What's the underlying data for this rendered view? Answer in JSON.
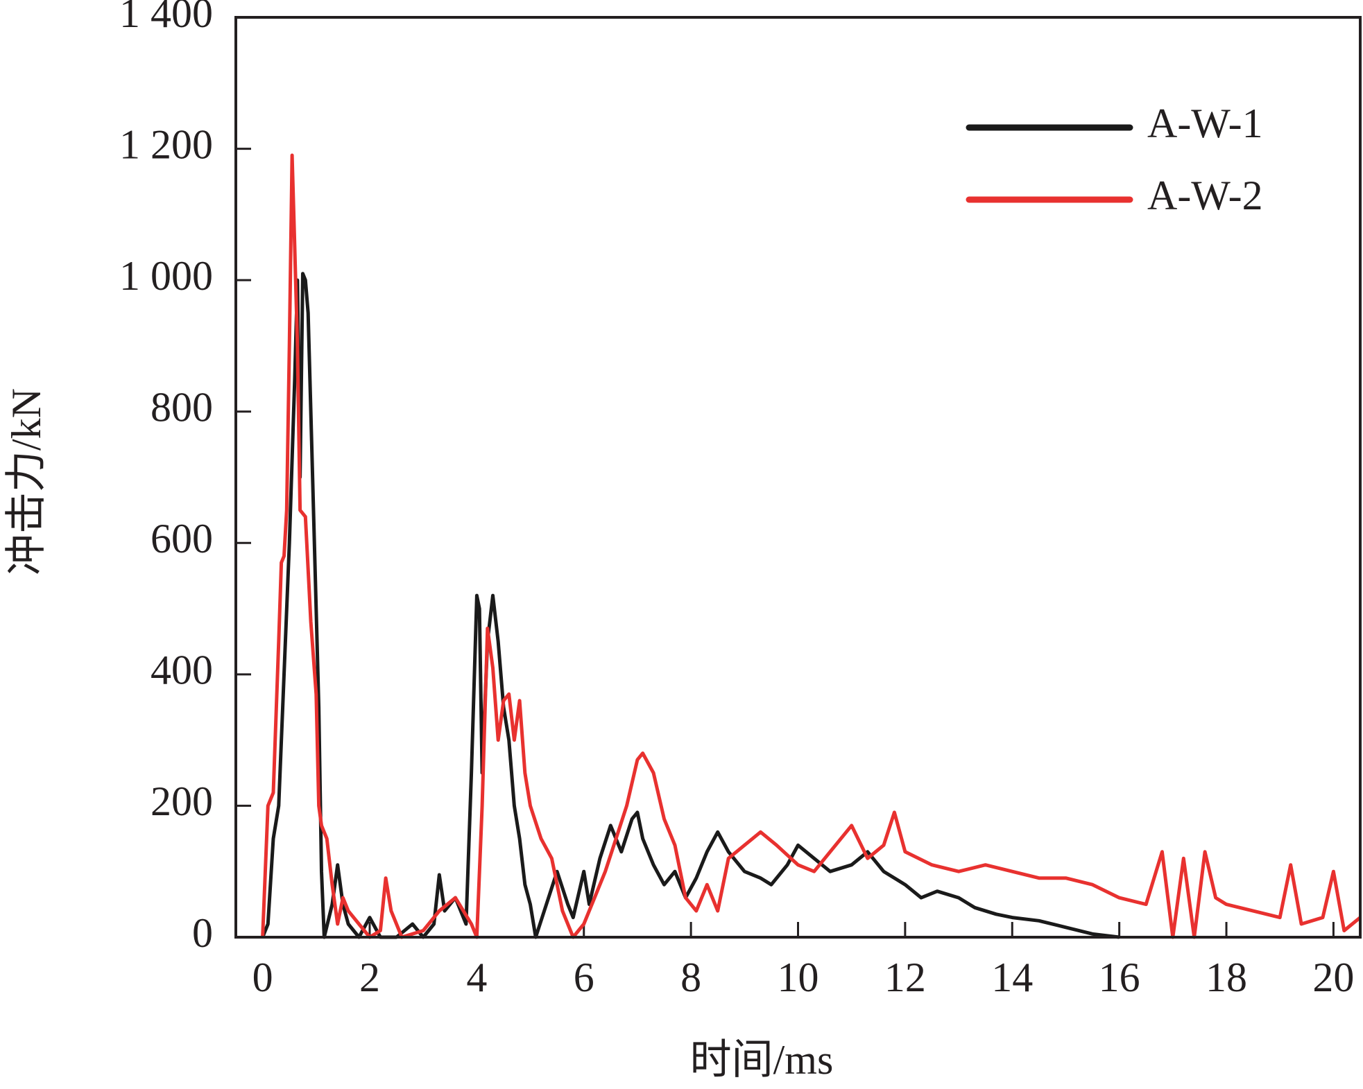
{
  "chart_data": {
    "type": "line",
    "xlabel": "时间/ms",
    "ylabel": "冲击力/kN",
    "xlim": [
      -0.5,
      20.5
    ],
    "xticks": [
      0,
      2,
      4,
      6,
      8,
      10,
      12,
      14,
      16,
      18,
      20
    ],
    "ylim": [
      0,
      1400
    ],
    "yticks": [
      0,
      200,
      400,
      600,
      800,
      {
        "value": 1000,
        "label": "1 000"
      },
      {
        "value": 1200,
        "label": "1 200"
      },
      {
        "value": 1400,
        "label": "1 400"
      }
    ],
    "legend": "upper right",
    "series": [
      {
        "name": "A-W-1",
        "color": "#1a1a1a",
        "x": [
          0,
          0.1,
          0.2,
          0.3,
          0.4,
          0.5,
          0.6,
          0.65,
          0.7,
          0.75,
          0.8,
          0.85,
          0.9,
          1.0,
          1.05,
          1.1,
          1.15,
          1.3,
          1.4,
          1.5,
          1.6,
          1.8,
          2.0,
          2.2,
          2.5,
          2.8,
          3.0,
          3.2,
          3.3,
          3.4,
          3.6,
          3.8,
          3.9,
          4.0,
          4.05,
          4.1,
          4.2,
          4.3,
          4.4,
          4.5,
          4.6,
          4.7,
          4.8,
          4.9,
          5.0,
          5.1,
          5.3,
          5.5,
          5.7,
          5.8,
          6.0,
          6.1,
          6.3,
          6.5,
          6.7,
          6.9,
          7.0,
          7.1,
          7.3,
          7.5,
          7.7,
          7.9,
          8.1,
          8.3,
          8.5,
          8.7,
          9.0,
          9.3,
          9.5,
          9.8,
          10.0,
          10.3,
          10.6,
          11.0,
          11.3,
          11.6,
          12.0,
          12.3,
          12.6,
          13.0,
          13.3,
          13.7,
          14.0,
          14.5,
          15.0,
          15.5,
          16.0
        ],
        "values": [
          0,
          20,
          150,
          200,
          400,
          600,
          850,
          1000,
          700,
          1010,
          1000,
          950,
          800,
          500,
          350,
          100,
          0,
          50,
          110,
          50,
          20,
          0,
          30,
          0,
          0,
          20,
          0,
          20,
          95,
          40,
          60,
          20,
          250,
          520,
          500,
          250,
          450,
          520,
          450,
          350,
          300,
          200,
          150,
          80,
          50,
          0,
          50,
          100,
          50,
          30,
          100,
          50,
          120,
          170,
          130,
          180,
          190,
          150,
          110,
          80,
          100,
          60,
          90,
          130,
          160,
          130,
          100,
          90,
          80,
          110,
          140,
          120,
          100,
          110,
          130,
          100,
          80,
          60,
          70,
          60,
          45,
          35,
          30,
          25,
          15,
          5,
          0
        ]
      },
      {
        "name": "A-W-2",
        "color": "#e8312f",
        "x": [
          0,
          0.1,
          0.2,
          0.3,
          0.35,
          0.4,
          0.45,
          0.5,
          0.55,
          0.6,
          0.65,
          0.7,
          0.8,
          0.9,
          1.0,
          1.05,
          1.1,
          1.2,
          1.3,
          1.4,
          1.5,
          1.6,
          1.8,
          2.0,
          2.2,
          2.3,
          2.4,
          2.6,
          3.0,
          3.3,
          3.6,
          3.9,
          4.0,
          4.1,
          4.2,
          4.3,
          4.4,
          4.5,
          4.6,
          4.7,
          4.8,
          4.9,
          5.0,
          5.2,
          5.4,
          5.6,
          5.8,
          6.0,
          6.2,
          6.4,
          6.6,
          6.8,
          7.0,
          7.1,
          7.3,
          7.5,
          7.7,
          7.9,
          8.1,
          8.3,
          8.5,
          8.7,
          9.0,
          9.3,
          9.6,
          10.0,
          10.3,
          10.6,
          11.0,
          11.3,
          11.6,
          11.8,
          12.0,
          12.5,
          13.0,
          13.5,
          14.0,
          14.5,
          15.0,
          15.5,
          16.0,
          16.5,
          16.8,
          17.0,
          17.2,
          17.4,
          17.6,
          17.8,
          18.0,
          18.5,
          19.0,
          19.2,
          19.4,
          19.8,
          20.0,
          20.2,
          20.5
        ],
        "values": [
          0,
          200,
          220,
          450,
          570,
          580,
          650,
          900,
          1190,
          1050,
          900,
          650,
          640,
          480,
          370,
          200,
          170,
          150,
          80,
          20,
          60,
          40,
          20,
          0,
          10,
          90,
          40,
          0,
          10,
          40,
          60,
          20,
          0,
          200,
          470,
          410,
          300,
          360,
          370,
          300,
          360,
          250,
          200,
          150,
          120,
          40,
          0,
          20,
          60,
          100,
          150,
          200,
          270,
          280,
          250,
          180,
          140,
          60,
          40,
          80,
          40,
          120,
          140,
          160,
          140,
          110,
          100,
          130,
          170,
          120,
          140,
          190,
          130,
          110,
          100,
          110,
          100,
          90,
          90,
          80,
          60,
          50,
          130,
          0,
          120,
          0,
          130,
          60,
          50,
          40,
          30,
          110,
          20,
          30,
          100,
          10,
          30
        ]
      }
    ]
  }
}
